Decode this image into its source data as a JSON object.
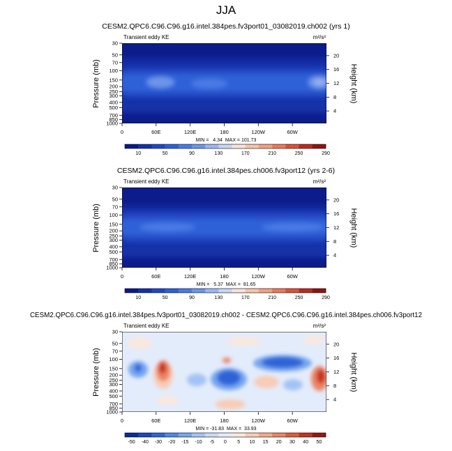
{
  "page_title": "JJA",
  "field_label": "Transient eddy KE",
  "units": "m²/s²",
  "colors": {
    "abs": [
      "#0a1a8c",
      "#1530a8",
      "#2048c4",
      "#2e60d8",
      "#4a7ae4",
      "#6d95ea",
      "#9cb6f0",
      "#c7d6f6",
      "#f7e3dc",
      "#f6c4ad",
      "#f2a083",
      "#ea7a5a",
      "#d95237",
      "#b92b1f",
      "#8e1414"
    ],
    "diff": [
      "#0d2a9a",
      "#1c46c0",
      "#2f64d8",
      "#4f86e8",
      "#76a6f0",
      "#a3c3f5",
      "#c9dbf8",
      "#e3ecfb",
      "#fbe7dd",
      "#f8ccb6",
      "#f3aa8c",
      "#ec8365",
      "#df5b3f",
      "#c5321f",
      "#9a1710"
    ]
  },
  "chart_data": [
    {
      "type": "heatmap",
      "title": "CESM2.QPC6.C96.C96.g16.intel.384pes.fv3port01_03082019.ch002 (yrs 1)",
      "field_label": "Transient eddy KE",
      "units": "m²/s²",
      "ylabel": "Pressure (mb)",
      "y2label": "Height (km)",
      "xticks": [
        "0",
        "60E",
        "120E",
        "180",
        "120W",
        "60W"
      ],
      "yticks": [
        "30",
        "50",
        "70",
        "100",
        "150",
        "200",
        "250",
        "300",
        "400",
        "500",
        "700",
        "850",
        "1000"
      ],
      "y2ticks": [
        "20",
        "16",
        "12",
        "8",
        "4"
      ],
      "min": 4.34,
      "max": 101.73,
      "stats": "MIN =   4.34  MAX = 101.73",
      "colorbar_labels": [
        "10",
        "50",
        "90",
        "130",
        "170",
        "210",
        "250",
        "290"
      ]
    },
    {
      "type": "heatmap",
      "title": "CESM2.QPC6.C96.C96.g16.intel.384pes.ch006.fv3port12 (yrs 2-6)",
      "field_label": "Transient eddy KE",
      "units": "m²/s²",
      "ylabel": "Pressure (mb)",
      "y2label": "Height (km)",
      "xticks": [
        "0",
        "60E",
        "120E",
        "180",
        "120W",
        "60W"
      ],
      "yticks": [
        "30",
        "50",
        "70",
        "100",
        "150",
        "200",
        "250",
        "300",
        "400",
        "500",
        "700",
        "850",
        "1000"
      ],
      "y2ticks": [
        "20",
        "16",
        "12",
        "8",
        "4"
      ],
      "min": 5.37,
      "max": 81.65,
      "stats": "MIN =   5.37  MAX =  81.65",
      "colorbar_labels": [
        "10",
        "50",
        "90",
        "130",
        "170",
        "210",
        "250",
        "290"
      ]
    },
    {
      "type": "heatmap",
      "title": "CESM2.QPC6.C96.C96.g16.intel.384pes.fv3port01_03082019.ch002 - CESM2.QPC6.C96.C96.g16.intel.384pes.ch006.fv3port12",
      "field_label": "Transient eddy KE",
      "units": "m²/s²",
      "ylabel": "Pressure (mb)",
      "y2label": "Height (km)",
      "xticks": [
        "0",
        "60E",
        "120E",
        "180",
        "120W",
        "60W"
      ],
      "yticks": [
        "30",
        "50",
        "70",
        "100",
        "150",
        "200",
        "250",
        "300",
        "400",
        "500",
        "700",
        "850",
        "1000"
      ],
      "y2ticks": [
        "20",
        "16",
        "12",
        "8",
        "4"
      ],
      "min": -31.83,
      "max": 33.93,
      "stats": "MIN = -31.83  MAX =  33.93",
      "colorbar_labels": [
        "-50",
        "-40",
        "-30",
        "-20",
        "-15",
        "-10",
        "-5",
        "0",
        "5",
        "10",
        "15",
        "20",
        "30",
        "40",
        "50"
      ]
    }
  ]
}
